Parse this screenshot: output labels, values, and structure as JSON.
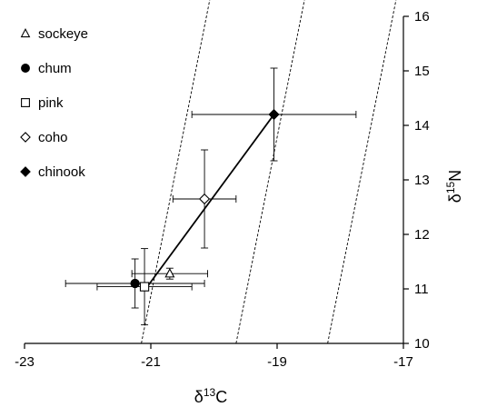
{
  "chart_data": {
    "type": "scatter",
    "xlabel": "δ13C",
    "ylabel": "δ15N",
    "xlim": [
      -23,
      -17
    ],
    "ylim": [
      10,
      16
    ],
    "grid": false,
    "legend_position": "top-left",
    "x_ticks": [
      "-23",
      "-21",
      "-19",
      "-17"
    ],
    "x_tick_values": [
      -23,
      -21,
      -19,
      -17
    ],
    "y_ticks": [
      "10",
      "11",
      "12",
      "13",
      "14",
      "15",
      "16"
    ],
    "y_tick_values": [
      10,
      11,
      12,
      13,
      14,
      15,
      16
    ],
    "series": [
      {
        "name": "sockeye",
        "marker": "triangle-open",
        "x": -20.7,
        "y": 11.28,
        "xerr": [
          0.6,
          0.6
        ],
        "yerr": [
          0.1,
          0.1
        ]
      },
      {
        "name": "chum",
        "marker": "circle-filled",
        "x": -21.25,
        "y": 11.1,
        "xerr": [
          1.1,
          1.1
        ],
        "yerr": [
          0.45,
          0.45
        ]
      },
      {
        "name": "pink",
        "marker": "square-open",
        "x": -21.1,
        "y": 11.04,
        "xerr": [
          0.75,
          0.75
        ],
        "yerr": [
          0.7,
          0.7
        ]
      },
      {
        "name": "coho",
        "marker": "diamond-open",
        "x": -20.15,
        "y": 12.65,
        "xerr": [
          0.5,
          0.5
        ],
        "yerr": [
          0.9,
          0.9
        ]
      },
      {
        "name": "chinook",
        "marker": "diamond-filled",
        "x": -19.05,
        "y": 14.2,
        "xerr": [
          1.3,
          1.3
        ],
        "yerr": [
          0.85,
          0.85
        ]
      }
    ],
    "trend_line": [
      {
        "x": -21.05,
        "y": 11.05
      },
      {
        "x": -19.05,
        "y": 14.2
      }
    ],
    "reference_lines": [
      {
        "x_at_ymin": -21.15,
        "x_at_ymax": -20.05
      },
      {
        "x_at_ymin": -19.65,
        "x_at_ymax": -18.55
      },
      {
        "x_at_ymin": -18.2,
        "x_at_ymax": -17.1
      }
    ]
  }
}
